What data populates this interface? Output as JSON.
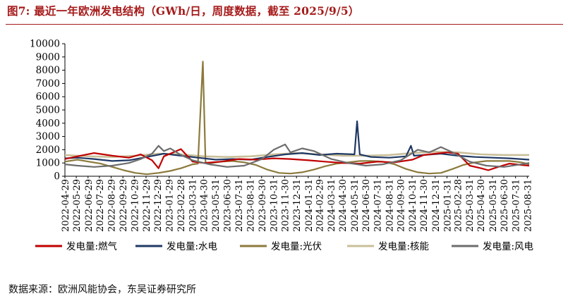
{
  "title": "图7:  最近一年欧洲发电结构（GWh/日，周度数据，截至 2025/9/5）",
  "source": "数据来源：欧洲风能协会，东吴证券研究所",
  "chart_data": {
    "type": "line",
    "ylim": [
      0,
      10000
    ],
    "yticks": [
      0,
      1000,
      2000,
      3000,
      4000,
      5000,
      6000,
      7000,
      8000,
      9000,
      10000
    ],
    "x_start": "2022-04-29",
    "x_end": "2025-09-05",
    "xtick_labels": [
      "2022-04-29",
      "2022-05-29",
      "2022-06-29",
      "2022-07-29",
      "2022-08-29",
      "2022-09-29",
      "2022-10-29",
      "2022-11-29",
      "2022-12-29",
      "2023-01-29",
      "2023-02-28",
      "2023-03-31",
      "2023-04-30",
      "2023-05-31",
      "2023-06-30",
      "2023-07-31",
      "2023-08-31",
      "2023-09-30",
      "2023-10-31",
      "2023-11-30",
      "2023-12-31",
      "2024-01-31",
      "2024-02-29",
      "2024-03-31",
      "2024-04-30",
      "2024-05-31",
      "2024-06-30",
      "2024-07-31",
      "2024-08-31",
      "2024-09-30",
      "2024-10-31",
      "2024-11-30",
      "2024-12-31",
      "2025-01-31",
      "2025-02-28",
      "2025-03-31",
      "2025-04-30",
      "2025-05-31",
      "2025-06-30",
      "2025-07-31",
      "2025-08-31"
    ],
    "legend_position": "bottom",
    "series": [
      {
        "name": "发电量:燃气",
        "color": "#c00000",
        "width": 2.2,
        "x": [
          "2022-04-29",
          "2022-06-01",
          "2022-07-15",
          "2022-09-01",
          "2022-10-15",
          "2022-11-15",
          "2022-12-15",
          "2023-01-01",
          "2023-01-15",
          "2023-02-01",
          "2023-03-01",
          "2023-04-01",
          "2023-05-01",
          "2023-06-15",
          "2023-08-01",
          "2023-09-15",
          "2023-11-01",
          "2023-12-15",
          "2024-02-01",
          "2024-03-15",
          "2024-05-01",
          "2024-06-15",
          "2024-08-01",
          "2024-09-15",
          "2024-11-01",
          "2024-12-01",
          "2025-01-01",
          "2025-02-01",
          "2025-03-01",
          "2025-04-01",
          "2025-05-01",
          "2025-05-20",
          "2025-06-15",
          "2025-07-15",
          "2025-08-15",
          "2025-09-05"
        ],
        "y": [
          1300,
          1500,
          1750,
          1550,
          1400,
          1650,
          1200,
          600,
          1500,
          1700,
          2050,
          1100,
          1000,
          1100,
          1300,
          1250,
          1350,
          1300,
          1200,
          1100,
          1000,
          950,
          1100,
          1050,
          1250,
          1600,
          1700,
          1800,
          1700,
          800,
          600,
          450,
          700,
          950,
          850,
          800
        ]
      },
      {
        "name": "发电量:水电",
        "color": "#1f3864",
        "width": 2.2,
        "x": [
          "2022-04-29",
          "2022-06-01",
          "2022-07-15",
          "2022-09-01",
          "2022-10-15",
          "2022-12-01",
          "2023-01-15",
          "2023-03-01",
          "2023-04-15",
          "2023-06-01",
          "2023-07-15",
          "2023-09-01",
          "2023-10-15",
          "2023-12-01",
          "2024-01-15",
          "2024-03-01",
          "2024-04-15",
          "2024-06-01",
          "2024-06-08",
          "2024-06-15",
          "2024-06-22",
          "2024-07-15",
          "2024-09-01",
          "2024-10-15",
          "2024-10-28",
          "2024-11-05",
          "2024-12-01",
          "2025-01-15",
          "2025-03-01",
          "2025-04-15",
          "2025-06-01",
          "2025-07-15",
          "2025-09-05"
        ],
        "y": [
          1350,
          1400,
          1300,
          1150,
          1200,
          1450,
          1700,
          1550,
          1400,
          1250,
          1300,
          1250,
          1450,
          1650,
          1750,
          1600,
          1700,
          1650,
          4150,
          1650,
          1600,
          1450,
          1400,
          1500,
          2300,
          1550,
          1600,
          1700,
          1550,
          1450,
          1400,
          1350,
          1250
        ]
      },
      {
        "name": "发电量:光伏",
        "color": "#8c7a3c",
        "width": 2.2,
        "x": [
          "2022-04-29",
          "2022-06-01",
          "2022-07-01",
          "2022-08-01",
          "2022-09-01",
          "2022-10-01",
          "2022-11-01",
          "2022-12-01",
          "2023-01-01",
          "2023-02-01",
          "2023-03-01",
          "2023-04-01",
          "2023-04-15",
          "2023-04-28",
          "2023-05-05",
          "2023-05-12",
          "2023-06-15",
          "2023-07-15",
          "2023-08-15",
          "2023-09-15",
          "2023-10-15",
          "2023-11-15",
          "2023-12-15",
          "2024-01-15",
          "2024-02-15",
          "2024-03-15",
          "2024-04-15",
          "2024-05-15",
          "2024-06-15",
          "2024-07-15",
          "2024-08-15",
          "2024-09-15",
          "2024-10-15",
          "2024-11-15",
          "2024-12-15",
          "2025-01-15",
          "2025-02-15",
          "2025-03-15",
          "2025-04-15",
          "2025-05-15",
          "2025-06-15",
          "2025-07-15",
          "2025-08-15",
          "2025-09-05"
        ],
        "y": [
          1100,
          1250,
          1100,
          950,
          700,
          450,
          250,
          150,
          250,
          400,
          600,
          900,
          950,
          8650,
          1050,
          950,
          1100,
          1150,
          1050,
          850,
          500,
          250,
          200,
          300,
          500,
          750,
          950,
          1050,
          1150,
          1150,
          1100,
          900,
          550,
          300,
          200,
          250,
          550,
          850,
          1050,
          1150,
          1150,
          1150,
          1050,
          900
        ]
      },
      {
        "name": "发电量:核能",
        "color": "#c9bf9a",
        "width": 2.6,
        "x": [
          "2022-04-29",
          "2022-07-01",
          "2022-09-01",
          "2022-11-01",
          "2023-01-01",
          "2023-03-01",
          "2023-05-01",
          "2023-07-01",
          "2023-09-01",
          "2023-11-01",
          "2024-01-01",
          "2024-03-01",
          "2024-05-01",
          "2024-07-01",
          "2024-09-01",
          "2024-11-01",
          "2025-01-01",
          "2025-03-01",
          "2025-05-01",
          "2025-07-01",
          "2025-09-05"
        ],
        "y": [
          1600,
          1500,
          1450,
          1550,
          1700,
          1650,
          1500,
          1450,
          1500,
          1650,
          1750,
          1650,
          1550,
          1550,
          1600,
          1750,
          1850,
          1800,
          1650,
          1600,
          1600
        ]
      },
      {
        "name": "发电量:风电",
        "color": "#6d6d6d",
        "width": 2.2,
        "x": [
          "2022-04-29",
          "2022-06-01",
          "2022-07-15",
          "2022-09-01",
          "2022-10-15",
          "2022-11-15",
          "2022-12-15",
          "2023-01-01",
          "2023-01-15",
          "2023-02-01",
          "2023-03-01",
          "2023-04-01",
          "2023-05-15",
          "2023-07-01",
          "2023-08-15",
          "2023-10-01",
          "2023-11-01",
          "2023-12-01",
          "2023-12-15",
          "2024-01-15",
          "2024-02-15",
          "2024-04-01",
          "2024-05-15",
          "2024-07-01",
          "2024-08-15",
          "2024-10-01",
          "2024-11-15",
          "2024-12-15",
          "2025-01-15",
          "2025-02-15",
          "2025-04-01",
          "2025-05-15",
          "2025-07-01",
          "2025-08-15",
          "2025-09-05"
        ],
        "y": [
          900,
          800,
          700,
          800,
          1000,
          1300,
          1700,
          2300,
          1900,
          2100,
          1600,
          1200,
          900,
          700,
          800,
          1300,
          2000,
          2400,
          1800,
          2100,
          1900,
          1300,
          1000,
          800,
          900,
          1200,
          2000,
          1800,
          2200,
          1800,
          1100,
          800,
          700,
          900,
          1000
        ]
      }
    ]
  }
}
